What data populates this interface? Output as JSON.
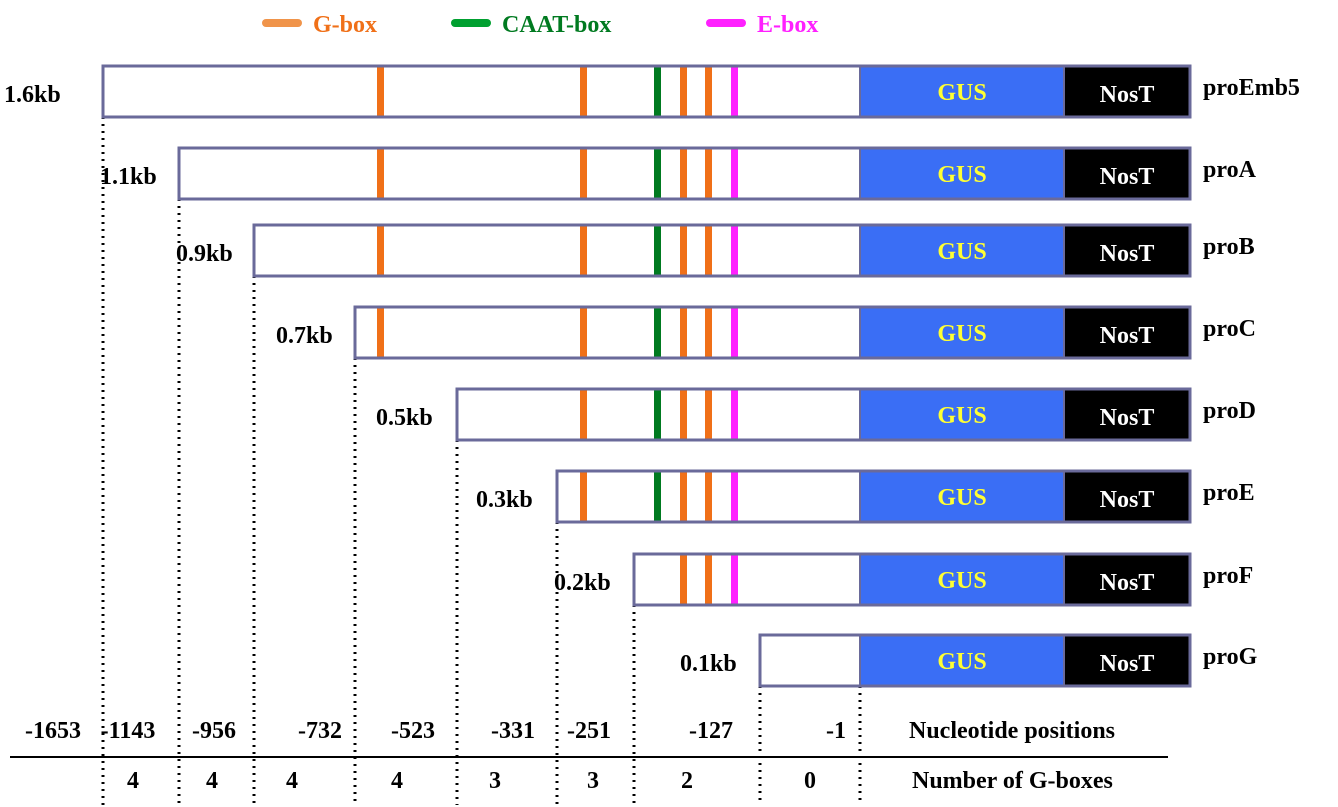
{
  "legend": [
    {
      "label": "G-box",
      "color": "#f07018",
      "swatch": "#f0944a"
    },
    {
      "label": "CAAT-box",
      "color": "#007a20",
      "swatch": "#00a030"
    },
    {
      "label": "E-box",
      "color": "#ff20ff",
      "swatch": "#ff20ff"
    }
  ],
  "colors": {
    "gbox": "#f07018",
    "caat": "#007a20",
    "ebox": "#ff20ff",
    "gus_fill": "#3a6ef5",
    "gus_text": "#ffff33",
    "nost_fill": "#000000",
    "nost_text": "#ffffff",
    "frame": "#6a6a9a"
  },
  "gus_label": "GUS",
  "nost_label": "NosT",
  "constructs": [
    {
      "name": "proEmb5",
      "size": "1.6kb",
      "gbox_count": 4,
      "has_caat": true
    },
    {
      "name": "proA",
      "size": "1.1kb",
      "gbox_count": 4,
      "has_caat": true
    },
    {
      "name": "proB",
      "size": "0.9kb",
      "gbox_count": 4,
      "has_caat": true
    },
    {
      "name": "proC",
      "size": "0.7kb",
      "gbox_count": 4,
      "has_caat": true
    },
    {
      "name": "proD",
      "size": "0.5kb",
      "gbox_count": 3,
      "has_caat": true
    },
    {
      "name": "proE",
      "size": "0.3kb",
      "gbox_count": 3,
      "has_caat": true
    },
    {
      "name": "proF",
      "size": "0.2kb",
      "gbox_count": 2,
      "has_caat": false
    },
    {
      "name": "proG",
      "size": "0.1kb",
      "gbox_count": 0,
      "has_caat": false
    }
  ],
  "positions": [
    "-1653",
    "-1143",
    "-956",
    "-732",
    "-523",
    "-331",
    "-251",
    "-127",
    "-1"
  ],
  "positions_label": "Nucleotide positions",
  "gbox_counts": [
    "4",
    "4",
    "4",
    "4",
    "3",
    "3",
    "2",
    "0"
  ],
  "gbox_counts_label": "Number of G-boxes"
}
